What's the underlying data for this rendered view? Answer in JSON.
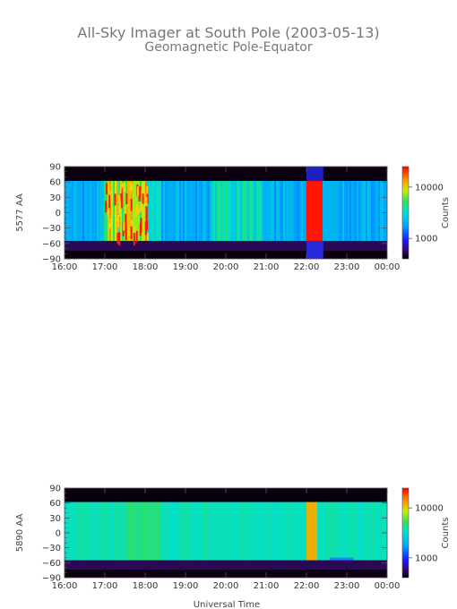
{
  "title_line1": "All-Sky Imager at South Pole (2003-05-13)",
  "title_line2": "Geomagnetic Pole-Equator",
  "xlabel": "Universal Time",
  "colors": {
    "axis": "#555555",
    "text": "#444444",
    "title": "#777777"
  },
  "chart_data": [
    {
      "type": "heatmap",
      "ylabel": "5577 AA",
      "x_ticks": [
        "16:00",
        "17:00",
        "18:00",
        "19:00",
        "20:00",
        "21:00",
        "22:00",
        "23:00",
        "00:00"
      ],
      "xlim": [
        "16:00",
        "00:00"
      ],
      "y_ticks": [
        90,
        60,
        30,
        0,
        -30,
        -60,
        -90
      ],
      "ylim": [
        -90,
        90
      ],
      "data_ylim": [
        -55,
        62
      ],
      "colorbar": {
        "label": "Counts",
        "scale": "log",
        "ticks": [
          10000,
          1000
        ],
        "range": [
          400,
          25000
        ]
      },
      "features": [
        {
          "desc": "patchy bright aurora",
          "x": [
            "17:00",
            "18:00"
          ],
          "y": [
            -40,
            60
          ],
          "level": "high"
        },
        {
          "desc": "moderate arcs",
          "x": [
            "19:40",
            "20:50"
          ],
          "y": [
            0,
            60
          ],
          "level": "medium"
        },
        {
          "desc": "intense band",
          "x": [
            "22:00",
            "22:25"
          ],
          "y": [
            -55,
            62
          ],
          "level": "very high"
        },
        {
          "desc": "background",
          "x": [
            "16:00",
            "00:00"
          ],
          "y": [
            -55,
            62
          ],
          "level": "low"
        }
      ]
    },
    {
      "type": "heatmap",
      "ylabel": "5890 AA",
      "x_ticks": [
        "16:00",
        "17:00",
        "18:00",
        "19:00",
        "20:00",
        "21:00",
        "22:00",
        "23:00",
        "00:00"
      ],
      "xlim": [
        "16:00",
        "00:00"
      ],
      "y_ticks": [
        90,
        60,
        30,
        0,
        -30,
        -60,
        -90
      ],
      "ylim": [
        -90,
        90
      ],
      "data_ylim": [
        -55,
        62
      ],
      "colorbar": {
        "label": "Counts",
        "scale": "log",
        "ticks": [
          10000,
          1000
        ],
        "range": [
          400,
          25000
        ]
      },
      "features": [
        {
          "desc": "uniform background",
          "x": [
            "16:00",
            "00:00"
          ],
          "y": [
            -55,
            62
          ],
          "level": "medium"
        },
        {
          "desc": "bright streak",
          "x": [
            "22:00",
            "22:15"
          ],
          "y": [
            -50,
            62
          ],
          "level": "high"
        }
      ]
    }
  ]
}
